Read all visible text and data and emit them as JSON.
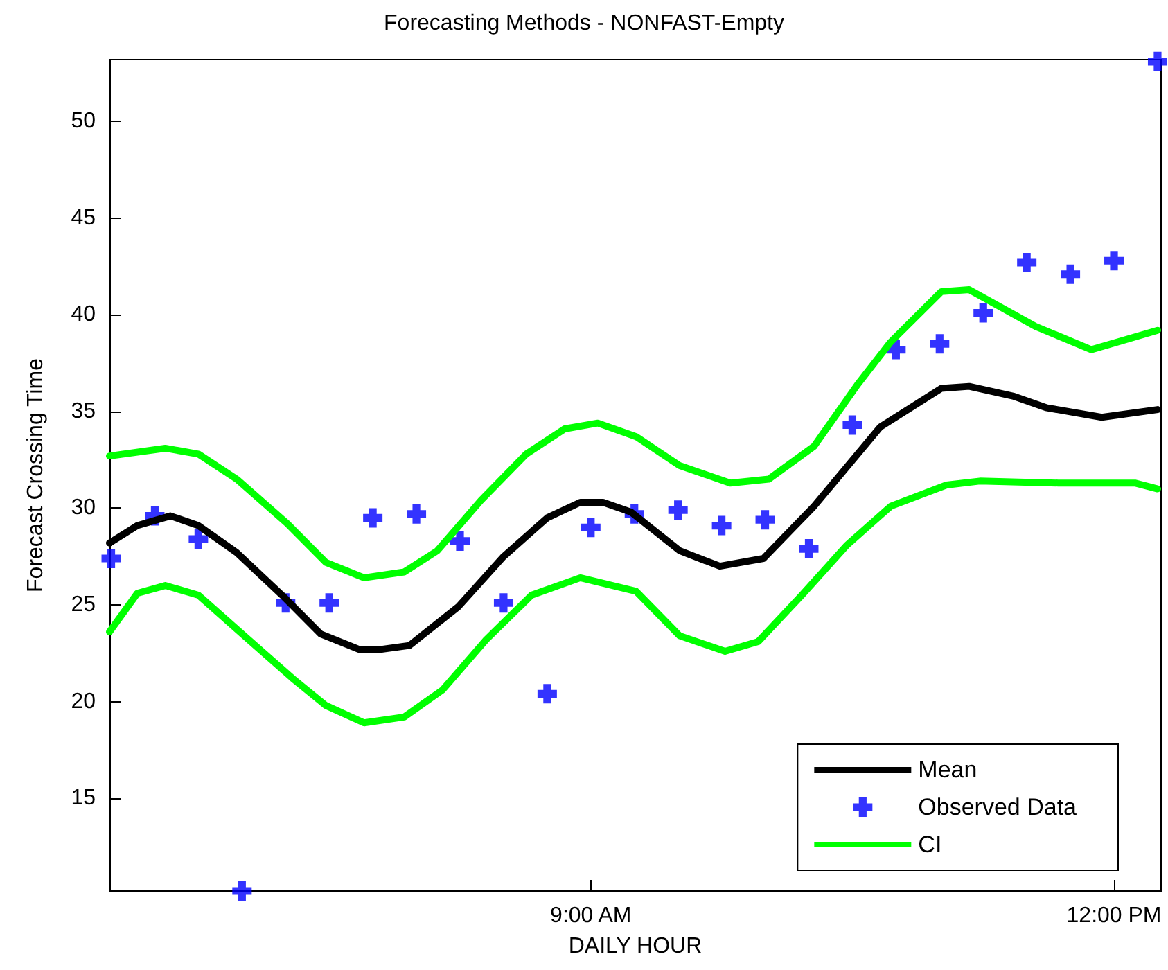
{
  "chart_data": {
    "type": "line",
    "title": "Forecasting Methods - NONFAST-Empty",
    "xlabel": "DAILY HOUR",
    "ylabel": "Forecast Crossing Time",
    "xlim": [
      6.24,
      12.27
    ],
    "xticks": [
      {
        "value": 9,
        "label": "9:00 AM"
      },
      {
        "value": 12,
        "label": "12:00 PM"
      }
    ],
    "ylim": [
      10.2,
      53.2
    ],
    "yticks": [
      15,
      20,
      25,
      30,
      35,
      40,
      45,
      50
    ],
    "grid": false,
    "legend": "bottom right",
    "line_style": "solid",
    "series": [
      {
        "name": "Mean",
        "marker": "none",
        "color": "#000000",
        "x": [
          6.24,
          6.4,
          6.59,
          6.75,
          6.97,
          7.23,
          7.45,
          7.67,
          7.8,
          7.96,
          8.24,
          8.5,
          8.75,
          8.94,
          9.07,
          9.23,
          9.51,
          9.74,
          9.99,
          10.28,
          10.66,
          11.01,
          11.17,
          11.42,
          11.61,
          11.93,
          12.25
        ],
        "values": [
          28.2,
          29.1,
          29.6,
          29.1,
          27.7,
          25.5,
          23.5,
          22.7,
          22.7,
          22.9,
          24.9,
          27.5,
          29.5,
          30.3,
          30.3,
          29.8,
          27.8,
          27.0,
          27.4,
          30.1,
          34.2,
          36.2,
          36.3,
          35.8,
          35.2,
          34.7,
          35.1
        ]
      },
      {
        "name": "Observed Data",
        "type": "scatter",
        "marker": "cross",
        "color": "#0000ff",
        "x": [
          6.25,
          6.5,
          6.75,
          7.0,
          7.25,
          7.5,
          7.75,
          8.0,
          8.25,
          8.5,
          8.75,
          9.0,
          9.25,
          9.5,
          9.75,
          10.0,
          10.25,
          10.5,
          10.75,
          11.0,
          11.25,
          11.5,
          11.75,
          12.0,
          12.25
        ],
        "values": [
          27.4,
          29.6,
          28.4,
          10.2,
          25.1,
          25.1,
          29.5,
          29.7,
          28.3,
          25.1,
          20.4,
          29.0,
          29.7,
          29.9,
          29.1,
          29.4,
          27.9,
          34.3,
          38.2,
          38.5,
          40.1,
          42.7,
          42.1,
          42.8,
          53.1
        ]
      },
      {
        "name": "CI",
        "marker": "none",
        "color": "#00ff00",
        "x": [
          6.24,
          6.56,
          6.75,
          6.97,
          7.26,
          7.48,
          7.7,
          7.93,
          8.12,
          8.37,
          8.63,
          8.85,
          9.04,
          9.26,
          9.51,
          9.8,
          10.02,
          10.28,
          10.53,
          10.72,
          11.01,
          11.17,
          11.55,
          11.87,
          12.25
        ],
        "values": [
          32.7,
          33.1,
          32.8,
          31.5,
          29.2,
          27.2,
          26.4,
          26.7,
          27.8,
          30.4,
          32.8,
          34.1,
          34.4,
          33.7,
          32.2,
          31.3,
          31.5,
          33.2,
          36.4,
          38.6,
          41.2,
          41.3,
          39.4,
          38.2,
          39.2
        ]
      },
      {
        "marker": "none",
        "color": "#00ff00",
        "x": [
          6.24,
          6.4,
          6.56,
          6.75,
          7.0,
          7.29,
          7.48,
          7.7,
          7.93,
          8.15,
          8.4,
          8.66,
          8.94,
          9.26,
          9.51,
          9.77,
          9.96,
          10.21,
          10.47,
          10.72,
          11.04,
          11.23,
          11.68,
          12.12,
          12.25
        ],
        "values": [
          23.6,
          25.6,
          26.0,
          25.5,
          23.5,
          21.2,
          19.8,
          18.9,
          19.2,
          20.6,
          23.2,
          25.5,
          26.4,
          25.7,
          23.4,
          22.6,
          23.1,
          25.5,
          28.1,
          30.1,
          31.2,
          31.4,
          31.3,
          31.3,
          31.0
        ]
      }
    ]
  }
}
